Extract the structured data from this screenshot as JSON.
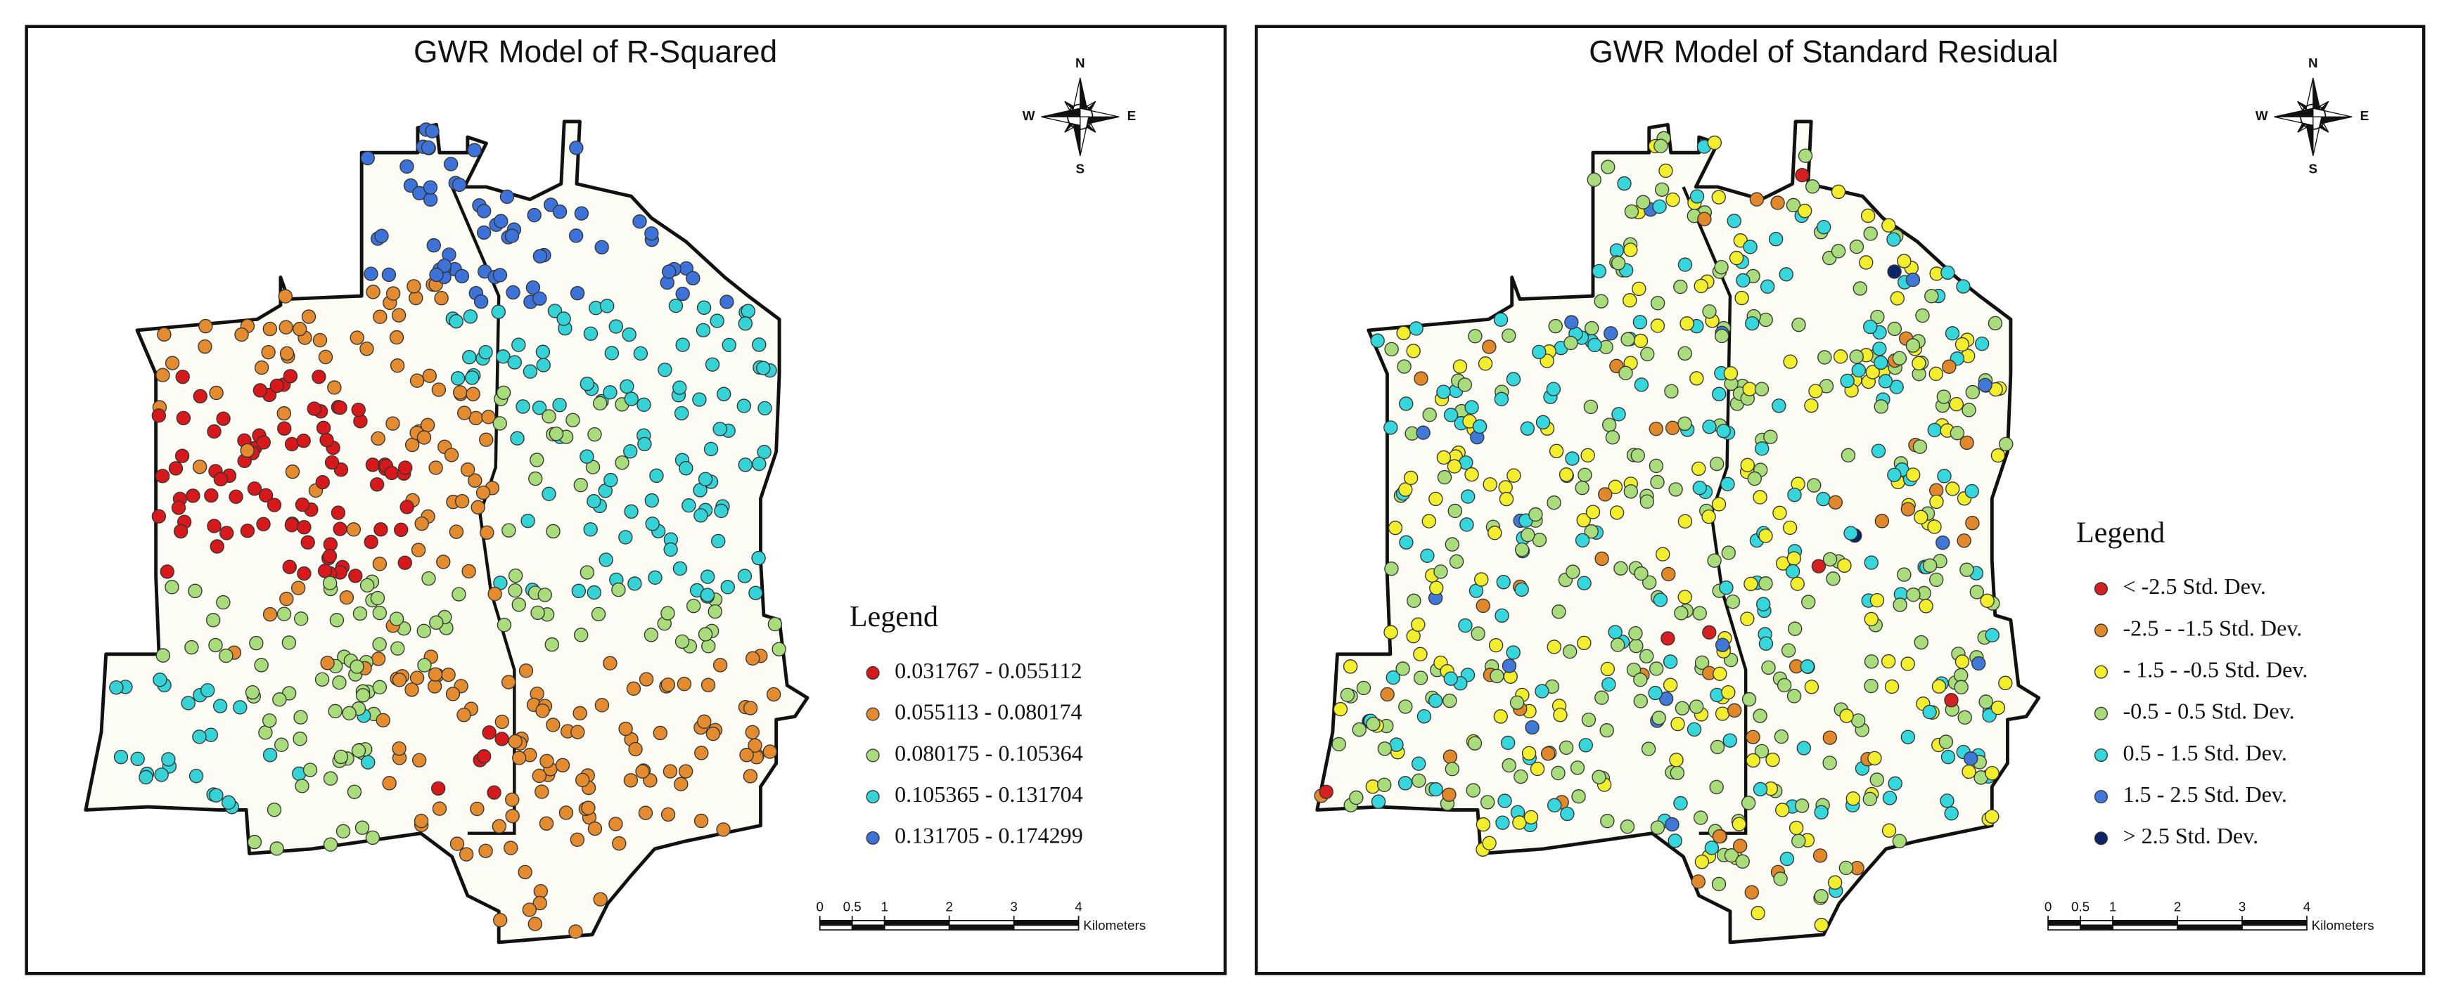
{
  "panels": [
    {
      "title": "GWR Model of R-Squared",
      "compass": {
        "n": "N",
        "e": "E",
        "s": "S",
        "w": "W"
      },
      "legend": {
        "title": "Legend",
        "items": [
          {
            "label": "0.031767 - 0.055112",
            "color": "#d7191c"
          },
          {
            "label": "0.055113 - 0.080174",
            "color": "#e38b2e"
          },
          {
            "label": "0.080175 - 0.105364",
            "color": "#a9dc7a"
          },
          {
            "label": "0.105365 - 0.131704",
            "color": "#35d3d6"
          },
          {
            "label": "0.131705 - 0.174299",
            "color": "#3d72d8"
          }
        ]
      },
      "scale": {
        "ticks": [
          0,
          0.5,
          1,
          2,
          3,
          4
        ],
        "unit": "Kilometers"
      }
    },
    {
      "title": "GWR Model of Standard Residual",
      "compass": {
        "n": "N",
        "e": "E",
        "s": "S",
        "w": "W"
      },
      "legend": {
        "title": "Legend",
        "items": [
          {
            "label": "< -2.5 Std. Dev.",
            "color": "#d42020"
          },
          {
            "label": "-2.5 - -1.5 Std. Dev.",
            "color": "#e0882a"
          },
          {
            "label": "- 1.5 - -0.5 Std. Dev.",
            "color": "#f2ee2e"
          },
          {
            "label": "-0.5 - 0.5 Std. Dev.",
            "color": "#a9dc7a"
          },
          {
            "label": "0.5 - 1.5 Std. Dev.",
            "color": "#35d6dc"
          },
          {
            "label": "1.5 - 2.5 Std. Dev.",
            "color": "#3f78d6"
          },
          {
            "label": "> 2.5 Std. Dev.",
            "color": "#0c2468"
          }
        ]
      },
      "scale": {
        "ticks": [
          0,
          0.5,
          1,
          2,
          3,
          4
        ],
        "unit": "Kilometers"
      }
    }
  ]
}
